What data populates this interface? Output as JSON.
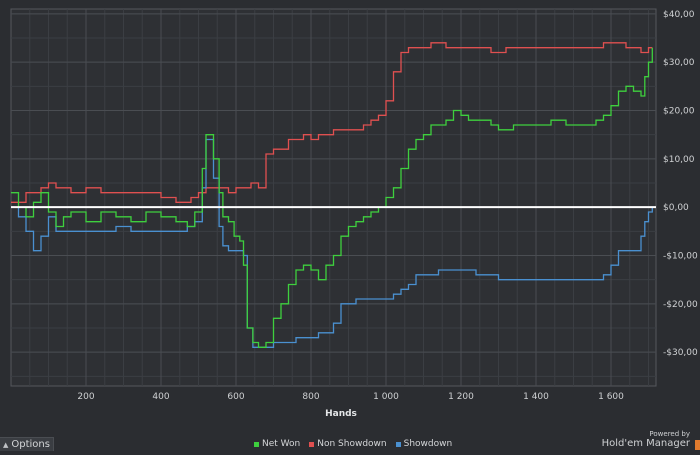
{
  "chart_data": {
    "type": "line",
    "xlabel": "Hands",
    "ylabel": "",
    "x_tick_labels": [
      "200",
      "400",
      "600",
      "800",
      "1 000",
      "1 200",
      "1 400",
      "1 600"
    ],
    "x_tick_values": [
      200,
      400,
      600,
      800,
      1000,
      1200,
      1400,
      1600
    ],
    "y_tick_labels": [
      "$40,00",
      "$30,00",
      "$20,00",
      "$10,00",
      "$0,00",
      "-$10,00",
      "-$20,00",
      "-$30,00"
    ],
    "y_tick_values": [
      40,
      30,
      20,
      10,
      0,
      -10,
      -20,
      -30
    ],
    "xlim": [
      0,
      1720
    ],
    "ylim": [
      -37,
      41
    ],
    "grid": true,
    "legend_position": "bottom-center",
    "series": [
      {
        "name": "Net Won",
        "color": "#3ecf3e",
        "points": [
          [
            0,
            3
          ],
          [
            20,
            0
          ],
          [
            40,
            -2
          ],
          [
            60,
            1
          ],
          [
            80,
            3
          ],
          [
            100,
            -1
          ],
          [
            120,
            -4
          ],
          [
            140,
            -2
          ],
          [
            160,
            -1
          ],
          [
            200,
            -3
          ],
          [
            240,
            -1
          ],
          [
            280,
            -2
          ],
          [
            320,
            -3
          ],
          [
            360,
            -1
          ],
          [
            400,
            -2
          ],
          [
            440,
            -3
          ],
          [
            470,
            -4
          ],
          [
            490,
            -1
          ],
          [
            510,
            8
          ],
          [
            520,
            15
          ],
          [
            540,
            10
          ],
          [
            555,
            3
          ],
          [
            565,
            -2
          ],
          [
            580,
            -3
          ],
          [
            595,
            -6
          ],
          [
            610,
            -7
          ],
          [
            620,
            -12
          ],
          [
            630,
            -25
          ],
          [
            645,
            -28
          ],
          [
            660,
            -29
          ],
          [
            680,
            -28
          ],
          [
            700,
            -23
          ],
          [
            720,
            -20
          ],
          [
            740,
            -16
          ],
          [
            760,
            -13
          ],
          [
            780,
            -12
          ],
          [
            800,
            -13
          ],
          [
            820,
            -15
          ],
          [
            840,
            -12
          ],
          [
            860,
            -10
          ],
          [
            880,
            -6
          ],
          [
            900,
            -4
          ],
          [
            920,
            -3
          ],
          [
            940,
            -2
          ],
          [
            960,
            -1
          ],
          [
            980,
            0
          ],
          [
            1000,
            2
          ],
          [
            1020,
            4
          ],
          [
            1040,
            8
          ],
          [
            1060,
            12
          ],
          [
            1080,
            14
          ],
          [
            1100,
            15
          ],
          [
            1120,
            17
          ],
          [
            1140,
            17
          ],
          [
            1160,
            18
          ],
          [
            1180,
            20
          ],
          [
            1200,
            19
          ],
          [
            1220,
            18
          ],
          [
            1240,
            18
          ],
          [
            1260,
            18
          ],
          [
            1280,
            17
          ],
          [
            1300,
            16
          ],
          [
            1320,
            16
          ],
          [
            1340,
            17
          ],
          [
            1360,
            17
          ],
          [
            1380,
            17
          ],
          [
            1400,
            17
          ],
          [
            1420,
            17
          ],
          [
            1440,
            18
          ],
          [
            1460,
            18
          ],
          [
            1480,
            17
          ],
          [
            1500,
            17
          ],
          [
            1520,
            17
          ],
          [
            1540,
            17
          ],
          [
            1560,
            18
          ],
          [
            1580,
            19
          ],
          [
            1600,
            21
          ],
          [
            1620,
            24
          ],
          [
            1640,
            25
          ],
          [
            1660,
            24
          ],
          [
            1680,
            23
          ],
          [
            1690,
            27
          ],
          [
            1700,
            30
          ],
          [
            1710,
            33
          ]
        ]
      },
      {
        "name": "Non Showdown",
        "color": "#e05050",
        "points": [
          [
            0,
            1
          ],
          [
            40,
            3
          ],
          [
            80,
            4
          ],
          [
            100,
            5
          ],
          [
            120,
            4
          ],
          [
            160,
            3
          ],
          [
            200,
            4
          ],
          [
            240,
            3
          ],
          [
            280,
            3
          ],
          [
            320,
            3
          ],
          [
            360,
            3
          ],
          [
            400,
            2
          ],
          [
            440,
            1
          ],
          [
            480,
            2
          ],
          [
            500,
            3
          ],
          [
            520,
            4
          ],
          [
            540,
            4
          ],
          [
            560,
            4
          ],
          [
            580,
            3
          ],
          [
            600,
            4
          ],
          [
            620,
            4
          ],
          [
            640,
            5
          ],
          [
            660,
            4
          ],
          [
            680,
            11
          ],
          [
            700,
            12
          ],
          [
            720,
            12
          ],
          [
            740,
            14
          ],
          [
            760,
            14
          ],
          [
            780,
            15
          ],
          [
            800,
            14
          ],
          [
            820,
            15
          ],
          [
            840,
            15
          ],
          [
            860,
            16
          ],
          [
            880,
            16
          ],
          [
            900,
            16
          ],
          [
            920,
            16
          ],
          [
            940,
            17
          ],
          [
            960,
            18
          ],
          [
            980,
            19
          ],
          [
            1000,
            22
          ],
          [
            1020,
            28
          ],
          [
            1040,
            32
          ],
          [
            1060,
            33
          ],
          [
            1080,
            33
          ],
          [
            1100,
            33
          ],
          [
            1120,
            34
          ],
          [
            1140,
            34
          ],
          [
            1160,
            33
          ],
          [
            1180,
            33
          ],
          [
            1200,
            33
          ],
          [
            1220,
            33
          ],
          [
            1240,
            33
          ],
          [
            1260,
            33
          ],
          [
            1280,
            32
          ],
          [
            1300,
            32
          ],
          [
            1320,
            33
          ],
          [
            1340,
            33
          ],
          [
            1360,
            33
          ],
          [
            1380,
            33
          ],
          [
            1400,
            33
          ],
          [
            1420,
            33
          ],
          [
            1440,
            33
          ],
          [
            1460,
            33
          ],
          [
            1480,
            33
          ],
          [
            1500,
            33
          ],
          [
            1520,
            33
          ],
          [
            1540,
            33
          ],
          [
            1560,
            33
          ],
          [
            1580,
            34
          ],
          [
            1600,
            34
          ],
          [
            1620,
            34
          ],
          [
            1640,
            33
          ],
          [
            1660,
            33
          ],
          [
            1680,
            32
          ],
          [
            1700,
            33
          ],
          [
            1710,
            33
          ]
        ]
      },
      {
        "name": "Showdown",
        "color": "#4a90d0",
        "points": [
          [
            0,
            0
          ],
          [
            20,
            -2
          ],
          [
            40,
            -5
          ],
          [
            60,
            -9
          ],
          [
            80,
            -6
          ],
          [
            100,
            -2
          ],
          [
            120,
            -5
          ],
          [
            140,
            -5
          ],
          [
            160,
            -5
          ],
          [
            200,
            -5
          ],
          [
            240,
            -5
          ],
          [
            280,
            -4
          ],
          [
            320,
            -5
          ],
          [
            360,
            -5
          ],
          [
            400,
            -5
          ],
          [
            440,
            -5
          ],
          [
            470,
            -4
          ],
          [
            490,
            -3
          ],
          [
            510,
            4
          ],
          [
            520,
            14
          ],
          [
            540,
            6
          ],
          [
            555,
            -4
          ],
          [
            565,
            -8
          ],
          [
            580,
            -9
          ],
          [
            595,
            -9
          ],
          [
            610,
            -9
          ],
          [
            620,
            -10
          ],
          [
            630,
            -25
          ],
          [
            645,
            -29
          ],
          [
            660,
            -29
          ],
          [
            680,
            -29
          ],
          [
            700,
            -28
          ],
          [
            720,
            -28
          ],
          [
            740,
            -28
          ],
          [
            760,
            -27
          ],
          [
            780,
            -27
          ],
          [
            800,
            -27
          ],
          [
            820,
            -26
          ],
          [
            840,
            -26
          ],
          [
            860,
            -24
          ],
          [
            880,
            -20
          ],
          [
            900,
            -20
          ],
          [
            920,
            -19
          ],
          [
            940,
            -19
          ],
          [
            960,
            -19
          ],
          [
            980,
            -19
          ],
          [
            1000,
            -19
          ],
          [
            1020,
            -18
          ],
          [
            1040,
            -17
          ],
          [
            1060,
            -16
          ],
          [
            1080,
            -14
          ],
          [
            1100,
            -14
          ],
          [
            1120,
            -14
          ],
          [
            1140,
            -13
          ],
          [
            1160,
            -13
          ],
          [
            1180,
            -13
          ],
          [
            1200,
            -13
          ],
          [
            1220,
            -13
          ],
          [
            1240,
            -14
          ],
          [
            1260,
            -14
          ],
          [
            1280,
            -14
          ],
          [
            1300,
            -15
          ],
          [
            1320,
            -15
          ],
          [
            1340,
            -15
          ],
          [
            1360,
            -15
          ],
          [
            1380,
            -15
          ],
          [
            1400,
            -15
          ],
          [
            1420,
            -15
          ],
          [
            1440,
            -15
          ],
          [
            1460,
            -15
          ],
          [
            1480,
            -15
          ],
          [
            1500,
            -15
          ],
          [
            1520,
            -15
          ],
          [
            1540,
            -15
          ],
          [
            1560,
            -15
          ],
          [
            1580,
            -14
          ],
          [
            1600,
            -12
          ],
          [
            1620,
            -9
          ],
          [
            1640,
            -9
          ],
          [
            1660,
            -9
          ],
          [
            1680,
            -6
          ],
          [
            1690,
            -3
          ],
          [
            1700,
            -1
          ],
          [
            1710,
            0
          ]
        ]
      }
    ]
  },
  "footer": {
    "options_label": "Options",
    "options_caret": "▲",
    "legend": [
      {
        "label": "Net Won",
        "color": "#3ecf3e"
      },
      {
        "label": "Non Showdown",
        "color": "#e05050"
      },
      {
        "label": "Showdown",
        "color": "#4a90d0"
      }
    ],
    "powered_by": "Powered by",
    "brand": "Hold'em Manager",
    "brand_accent": "#e07b2e"
  }
}
